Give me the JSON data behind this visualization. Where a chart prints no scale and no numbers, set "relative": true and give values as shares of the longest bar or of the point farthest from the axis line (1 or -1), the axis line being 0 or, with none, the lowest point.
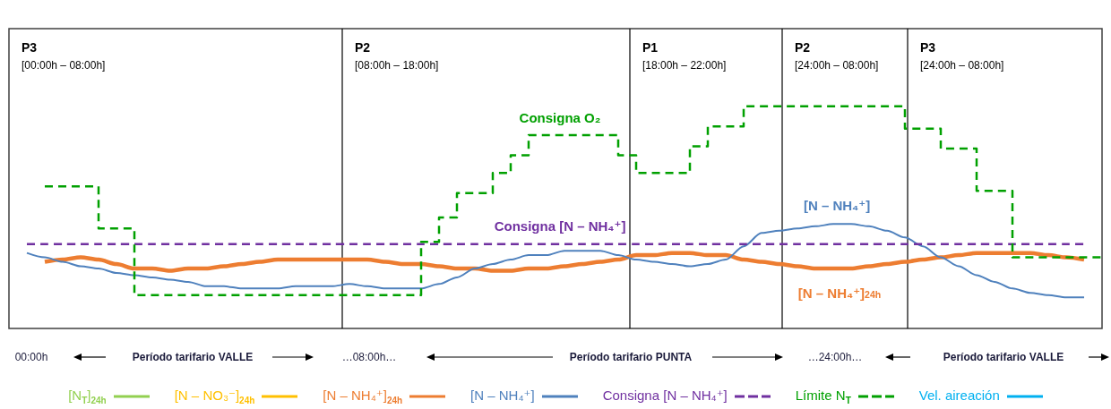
{
  "chart_data": {
    "type": "line",
    "relative": true,
    "categories": [
      null,
      null,
      null,
      null,
      null,
      null,
      null,
      null,
      null,
      null,
      null,
      null,
      null,
      null,
      null,
      null,
      null,
      null,
      null,
      null,
      null,
      null,
      null,
      null,
      null,
      null,
      null,
      null,
      null,
      null,
      null,
      null,
      null,
      null,
      null,
      null,
      null,
      null,
      null,
      null,
      null,
      null,
      null,
      null,
      null,
      null,
      null,
      null,
      null,
      null,
      null,
      null,
      null,
      null,
      null,
      null,
      null,
      null,
      null,
      null,
      null,
      null
    ],
    "series": [
      {
        "name": "[N$_{T}$]$_{24h}$",
        "color": "#92d050",
        "values": [
          null,
          null,
          null,
          null,
          null,
          null,
          null,
          null,
          null,
          null,
          null,
          null,
          null,
          null,
          null,
          null,
          null,
          null,
          null,
          null,
          null,
          null,
          null,
          null,
          null,
          null,
          null,
          null,
          null,
          null,
          null,
          null,
          null,
          null,
          null,
          null,
          null,
          null,
          null,
          null,
          null,
          null,
          null,
          null,
          null,
          null,
          null,
          null,
          null,
          null,
          null,
          null,
          null,
          null,
          null,
          null,
          null,
          null,
          null,
          null,
          null,
          null
        ]
      },
      {
        "name": "[N – NO₃⁻]$_{24h}$",
        "color": "#ffc000",
        "values": [
          null,
          null,
          null,
          null,
          null,
          null,
          null,
          null,
          null,
          null,
          null,
          null,
          null,
          null,
          null,
          null,
          null,
          null,
          null,
          null,
          null,
          null,
          null,
          null,
          null,
          null,
          null,
          null,
          null,
          null,
          null,
          null,
          null,
          null,
          null,
          null,
          null,
          null,
          null,
          null,
          null,
          null,
          null,
          null,
          null,
          null,
          null,
          null,
          null,
          null,
          null,
          null,
          null,
          null,
          null,
          null,
          null,
          null,
          null,
          null,
          null,
          null
        ]
      },
      {
        "name": "[N – NH₄⁺]$_{24h}$",
        "color": "#ed7d31",
        "values": [
          null,
          null,
          0.3,
          0.31,
          0.32,
          0.31,
          0.29,
          0.27,
          0.27,
          0.26,
          0.27,
          0.27,
          0.28,
          0.29,
          0.3,
          0.31,
          0.31,
          0.31,
          0.31,
          0.31,
          0.31,
          0.3,
          0.29,
          0.29,
          0.28,
          0.27,
          0.27,
          0.26,
          0.26,
          0.27,
          0.27,
          0.28,
          0.29,
          0.3,
          0.31,
          0.33,
          0.33,
          0.34,
          0.34,
          0.33,
          0.33,
          0.31,
          0.3,
          0.29,
          0.28,
          0.27,
          0.27,
          0.27,
          0.28,
          0.29,
          0.3,
          0.31,
          0.32,
          0.33,
          0.34,
          0.34,
          0.34,
          0.34,
          0.33,
          0.32,
          0.31,
          null
        ]
      },
      {
        "name": "[N – NH₄⁺]",
        "color": "#4f81bd",
        "values": [
          null,
          0.34,
          0.32,
          0.3,
          0.28,
          0.27,
          0.25,
          0.24,
          0.23,
          0.22,
          0.21,
          0.19,
          0.19,
          0.18,
          0.18,
          0.18,
          0.19,
          0.19,
          0.19,
          0.2,
          0.19,
          0.18,
          0.18,
          0.18,
          0.2,
          0.23,
          0.27,
          0.29,
          0.31,
          0.33,
          0.33,
          0.35,
          0.35,
          0.35,
          0.33,
          0.31,
          0.3,
          0.29,
          0.28,
          0.29,
          0.31,
          0.37,
          0.43,
          0.44,
          0.45,
          0.46,
          0.47,
          0.47,
          0.46,
          0.44,
          0.41,
          0.37,
          0.32,
          0.28,
          0.24,
          0.21,
          0.18,
          0.16,
          0.15,
          0.14,
          0.14,
          null
        ]
      },
      {
        "name": "Consigna [N – NH₄⁺]",
        "color": "#7030a0",
        "line_style": "dashed",
        "values": [
          null,
          0.38,
          0.38,
          0.38,
          0.38,
          0.38,
          0.38,
          0.38,
          0.38,
          0.38,
          0.38,
          0.38,
          0.38,
          0.38,
          0.38,
          0.38,
          0.38,
          0.38,
          0.38,
          0.38,
          0.38,
          0.38,
          0.38,
          0.38,
          0.38,
          0.38,
          0.38,
          0.38,
          0.38,
          0.38,
          0.38,
          0.38,
          0.38,
          0.38,
          0.38,
          0.38,
          0.38,
          0.38,
          0.38,
          0.38,
          0.38,
          0.38,
          0.38,
          0.38,
          0.38,
          0.38,
          0.38,
          0.38,
          0.38,
          0.38,
          0.38,
          0.38,
          0.38,
          0.38,
          0.38,
          0.38,
          0.38,
          0.38,
          0.38,
          0.38,
          0.38,
          null
        ]
      },
      {
        "name": "Límite N$_{T}$",
        "color": "#00a000",
        "type": "step",
        "line_style": "dashed",
        "values": [
          null,
          null,
          0.64,
          0.64,
          0.64,
          0.45,
          0.45,
          0.15,
          0.15,
          0.15,
          0.15,
          0.15,
          0.15,
          0.15,
          0.15,
          0.15,
          0.15,
          0.15,
          0.15,
          0.15,
          0.15,
          0.15,
          0.15,
          0.39,
          0.5,
          0.61,
          0.61,
          0.7,
          0.78,
          0.87,
          0.87,
          0.87,
          0.87,
          0.87,
          0.78,
          0.7,
          0.7,
          0.7,
          0.82,
          0.91,
          0.91,
          1.0,
          1.0,
          1.0,
          1.0,
          1.0,
          1.0,
          1.0,
          1.0,
          1.0,
          0.9,
          0.9,
          0.81,
          0.81,
          0.62,
          0.62,
          0.32,
          0.32,
          0.32,
          0.32,
          0.32,
          0.32
        ]
      },
      {
        "name": "Vel. aireación",
        "color": "#00b0f0",
        "values": [
          null,
          null,
          null,
          null,
          null,
          null,
          null,
          null,
          null,
          null,
          null,
          null,
          null,
          null,
          null,
          null,
          null,
          null,
          null,
          null,
          null,
          null,
          null,
          null,
          null,
          null,
          null,
          null,
          null,
          null,
          null,
          null,
          null,
          null,
          null,
          null,
          null,
          null,
          null,
          null,
          null,
          null,
          null,
          null,
          null,
          null,
          null,
          null,
          null,
          null,
          null,
          null,
          null,
          null,
          null,
          null,
          null,
          null,
          null,
          null,
          null,
          null
        ]
      }
    ],
    "annotations": [
      "Consigna O₂",
      "Consigna [N – NH₄⁺]",
      "[N – NH₄⁺]",
      "[N – NH₄⁺]$_{24h}$",
      "00:00h",
      "Período tarifario VALLE",
      "…08:00h…",
      "Período tarifario PUNTA",
      "…24:00h…",
      "Período tarifario VALLE",
      "P3\n[00:00h – 08:00h]",
      "P2\n[08:00h – 18:00h]",
      "P1\n[18:00h – 22:00h]",
      "P2\n[24:00h – 08:00h]",
      "P3\n[24:00h – 08:00h]"
    ],
    "grid": false,
    "legend": "bottom"
  }
}
